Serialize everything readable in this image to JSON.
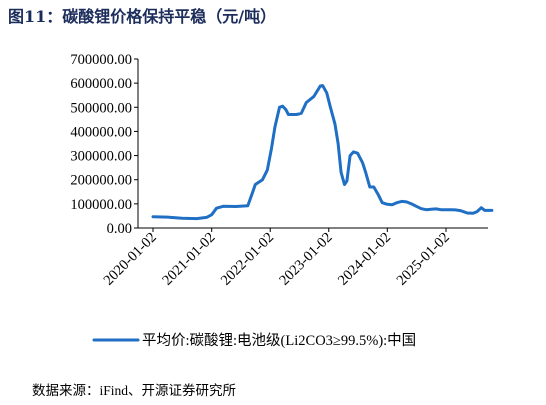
{
  "figure": {
    "title": "图11：碳酸锂价格保持平稳（元/吨）",
    "source": "数据来源：iFind、开源证券研究所",
    "title_color": "#1c2d5c",
    "line_color": "#1f6fc4"
  },
  "chart_data": {
    "type": "line",
    "title": "",
    "xlabel": "",
    "ylabel": "",
    "ylim": [
      0,
      700000
    ],
    "yticks": [
      0,
      100000,
      200000,
      300000,
      400000,
      500000,
      600000,
      700000
    ],
    "ytick_labels": [
      "0.00",
      "100000.00",
      "200000.00",
      "300000.00",
      "400000.00",
      "500000.00",
      "600000.00",
      "700000.00"
    ],
    "xlim": [
      "2020-01-02",
      "2025-10-15"
    ],
    "xticks": [
      "2020-01-02",
      "2021-01-02",
      "2022-01-02",
      "2023-01-02",
      "2024-01-02",
      "2025-01-02"
    ],
    "grid": false,
    "legend_position": "bottom",
    "series": [
      {
        "name": "平均价:碳酸锂:电池级(Li2CO3≥99.5%):中国",
        "points": [
          [
            "2020-01-02",
            47000
          ],
          [
            "2020-04-01",
            45000
          ],
          [
            "2020-07-01",
            40000
          ],
          [
            "2020-10-01",
            39000
          ],
          [
            "2020-12-01",
            44000
          ],
          [
            "2021-01-02",
            55000
          ],
          [
            "2021-02-01",
            82000
          ],
          [
            "2021-03-15",
            90000
          ],
          [
            "2021-06-01",
            89000
          ],
          [
            "2021-08-15",
            92000
          ],
          [
            "2021-09-15",
            150000
          ],
          [
            "2021-10-01",
            180000
          ],
          [
            "2021-11-15",
            200000
          ],
          [
            "2021-12-15",
            240000
          ],
          [
            "2022-01-10",
            330000
          ],
          [
            "2022-02-01",
            420000
          ],
          [
            "2022-03-01",
            500000
          ],
          [
            "2022-03-20",
            505000
          ],
          [
            "2022-04-10",
            490000
          ],
          [
            "2022-04-25",
            470000
          ],
          [
            "2022-06-15",
            470000
          ],
          [
            "2022-07-15",
            475000
          ],
          [
            "2022-08-15",
            520000
          ],
          [
            "2022-10-01",
            545000
          ],
          [
            "2022-11-10",
            588000
          ],
          [
            "2022-11-25",
            590000
          ],
          [
            "2022-12-20",
            560000
          ],
          [
            "2023-01-10",
            505000
          ],
          [
            "2023-02-10",
            430000
          ],
          [
            "2023-03-01",
            350000
          ],
          [
            "2023-03-20",
            230000
          ],
          [
            "2023-04-10",
            180000
          ],
          [
            "2023-04-25",
            195000
          ],
          [
            "2023-05-15",
            300000
          ],
          [
            "2023-06-05",
            315000
          ],
          [
            "2023-07-01",
            310000
          ],
          [
            "2023-08-01",
            270000
          ],
          [
            "2023-08-20",
            230000
          ],
          [
            "2023-09-15",
            170000
          ],
          [
            "2023-10-10",
            170000
          ],
          [
            "2023-11-05",
            140000
          ],
          [
            "2023-12-01",
            105000
          ],
          [
            "2024-01-02",
            98000
          ],
          [
            "2024-02-01",
            96000
          ],
          [
            "2024-03-01",
            105000
          ],
          [
            "2024-04-01",
            110000
          ],
          [
            "2024-05-01",
            108000
          ],
          [
            "2024-06-01",
            100000
          ],
          [
            "2024-07-01",
            90000
          ],
          [
            "2024-08-01",
            80000
          ],
          [
            "2024-09-01",
            76000
          ],
          [
            "2024-10-01",
            78000
          ],
          [
            "2024-11-01",
            79000
          ],
          [
            "2024-12-01",
            76000
          ],
          [
            "2025-01-02",
            76000
          ],
          [
            "2025-02-01",
            76000
          ],
          [
            "2025-03-01",
            75000
          ],
          [
            "2025-04-01",
            72000
          ],
          [
            "2025-05-15",
            62000
          ],
          [
            "2025-06-20",
            61000
          ],
          [
            "2025-07-15",
            68000
          ],
          [
            "2025-08-10",
            84000
          ],
          [
            "2025-09-01",
            73000
          ],
          [
            "2025-10-15",
            73000
          ]
        ]
      }
    ]
  }
}
